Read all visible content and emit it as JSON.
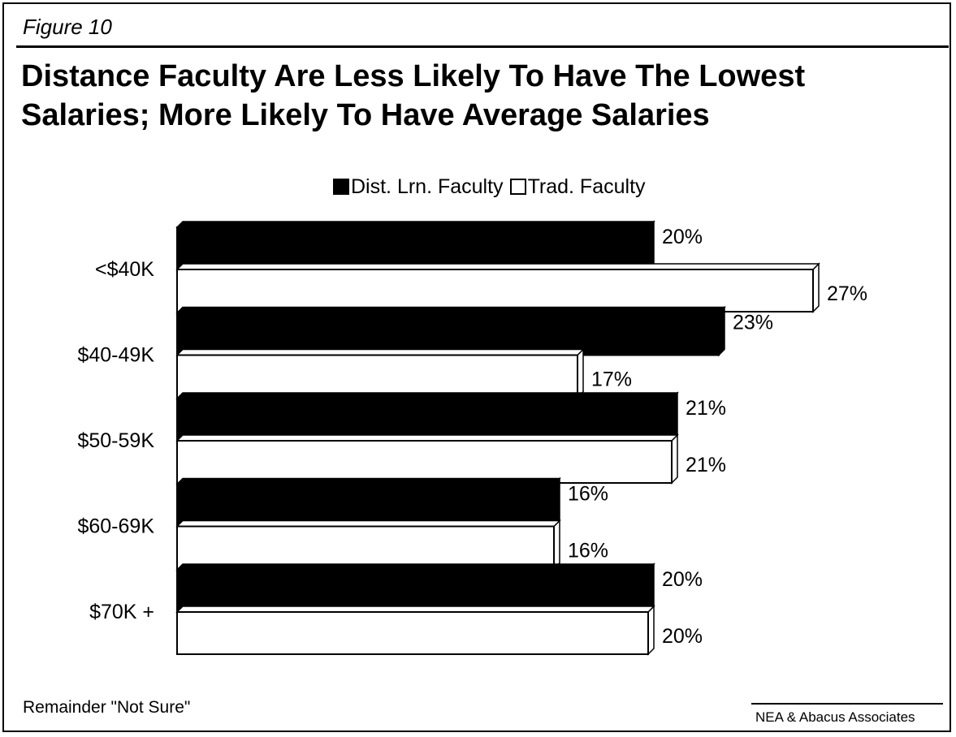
{
  "figure_label": "Figure 10",
  "colors": {
    "dist": "#000000",
    "trad": "#ffffff",
    "outline": "#000000"
  },
  "chart_data": {
    "type": "bar",
    "orientation": "horizontal",
    "title": "Distance Faculty Are Less Likely To Have The Lowest Salaries; More Likely To Have Average Salaries",
    "categories": [
      "<$40K",
      "$40-49K",
      "$50-59K",
      "$60-69K",
      "$70K +"
    ],
    "series": [
      {
        "name": "Dist. Lrn. Faculty",
        "values": [
          20,
          23,
          21,
          16,
          20
        ],
        "labels": [
          "20%",
          "23%",
          "21%",
          "16%",
          "20%"
        ]
      },
      {
        "name": "Trad. Faculty",
        "values": [
          27,
          17,
          21,
          16,
          20
        ],
        "labels": [
          "27%",
          "17%",
          "21%",
          "16%",
          "20%"
        ]
      }
    ],
    "value_suffix": "%",
    "xlim": [
      0,
      28
    ],
    "grid": false,
    "legend": "top"
  },
  "footnote": "Remainder \"Not Sure\"",
  "source": "NEA & Abacus Associates"
}
